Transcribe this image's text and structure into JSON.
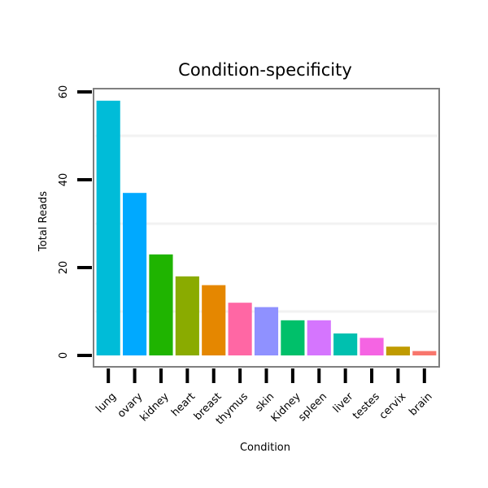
{
  "chart_data": {
    "type": "bar",
    "title": "Condition-specificity",
    "xlabel": "Condition",
    "ylabel": "Total Reads",
    "categories": [
      "lung",
      "ovary",
      "kidney",
      "heart",
      "breast",
      "thymus",
      "skin",
      "Kidney",
      "spleen",
      "liver",
      "testes",
      "cervix",
      "brain"
    ],
    "values": [
      58,
      37,
      23,
      18,
      16,
      12,
      11,
      8,
      8,
      5,
      4,
      2,
      1
    ],
    "colors": [
      "#00BCD8",
      "#00A9FF",
      "#1FB400",
      "#8AAB00",
      "#E58700",
      "#FF67A4",
      "#8F91FF",
      "#00C06A",
      "#D575FE",
      "#00C0AF",
      "#F564E3",
      "#C09B00",
      "#F8766D"
    ],
    "yticks": [
      0,
      20,
      40,
      60
    ],
    "ylim": [
      0,
      60
    ],
    "grid": true,
    "legend": "none"
  }
}
